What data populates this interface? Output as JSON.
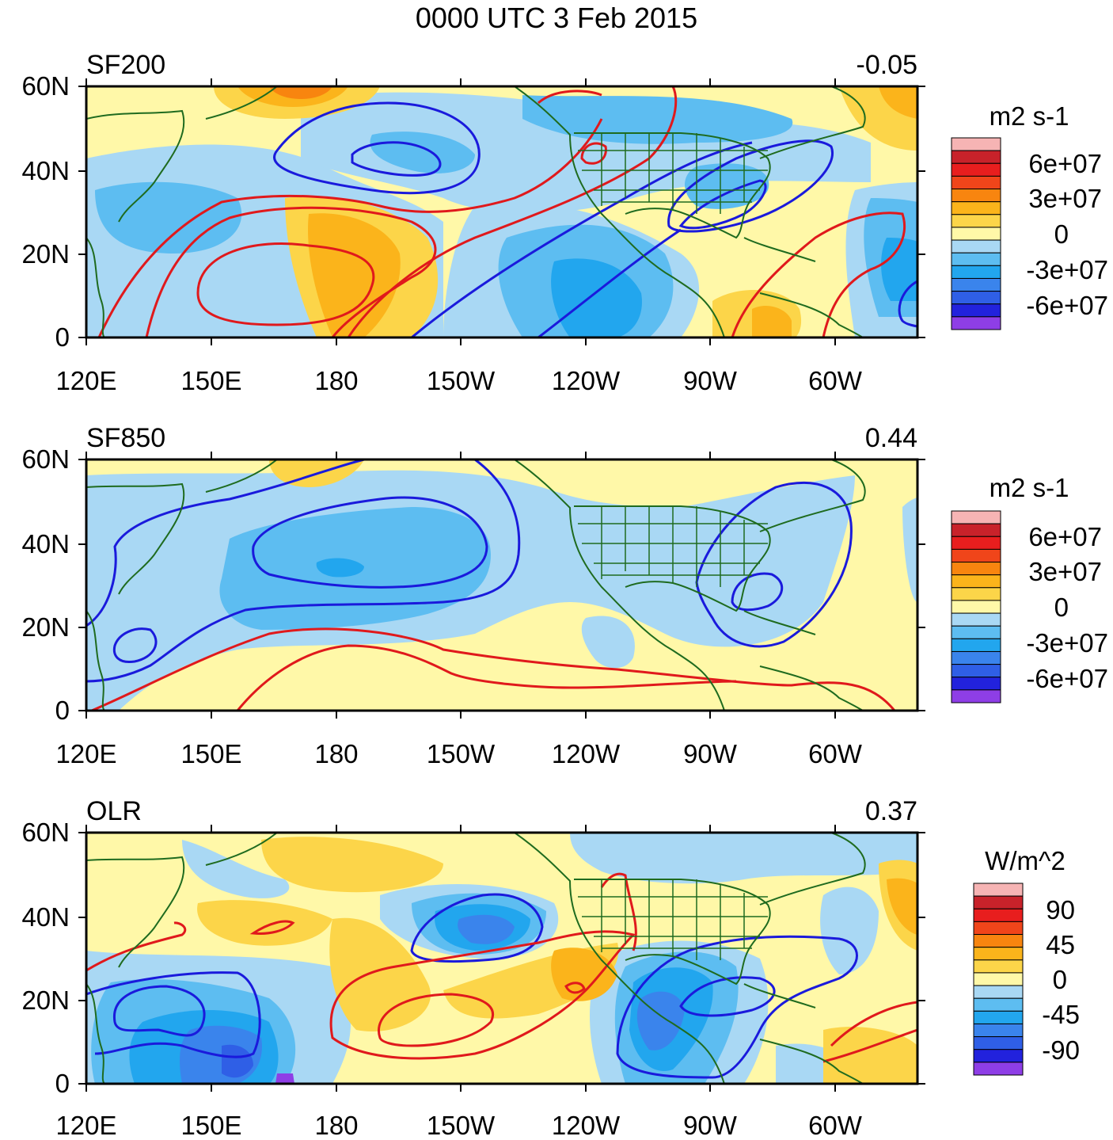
{
  "title": "0000 UTC 3 Feb 2015",
  "x_ticks": [
    "120E",
    "150E",
    "180",
    "150W",
    "120W",
    "90W",
    "60W"
  ],
  "y_ticks": [
    "60N",
    "40N",
    "20N",
    "0"
  ],
  "palette": {
    "sf": [
      "#8e3ee6",
      "#2222dd",
      "#2f5fe6",
      "#3a84ec",
      "#22a6ee",
      "#5dbdf1",
      "#a9d8f4",
      "#fff8a8",
      "#fcd549",
      "#fbb41b",
      "#f8850f",
      "#f0451a",
      "#e81e1e",
      "#c8222a",
      "#f6b4b4"
    ],
    "olr": [
      "#8e3ee6",
      "#2222dd",
      "#2f5fe6",
      "#3a84ec",
      "#22a6ee",
      "#5dbdf1",
      "#a9d8f4",
      "#fff8a8",
      "#fcd549",
      "#fbb41b",
      "#f8850f",
      "#f0451a",
      "#e81e1e",
      "#c8222a",
      "#f6b4b4"
    ],
    "positive_contour": "#e0191c",
    "negative_contour": "#1a1adc",
    "coast": "#1f6b1f"
  },
  "panels": [
    {
      "name": "SF200",
      "correlation": "-0.05",
      "units": "m2 s-1",
      "colorbar_labels": [
        "6e+07",
        "3e+07",
        "0",
        "-3e+07",
        "-6e+07"
      ]
    },
    {
      "name": "SF850",
      "correlation": "0.44",
      "units": "m2 s-1",
      "colorbar_labels": [
        "6e+07",
        "3e+07",
        "0",
        "-3e+07",
        "-6e+07"
      ]
    },
    {
      "name": "OLR",
      "correlation": "0.37",
      "units": "W/m^2",
      "colorbar_labels": [
        "90",
        "45",
        "0",
        "-45",
        "-90"
      ]
    }
  ]
}
